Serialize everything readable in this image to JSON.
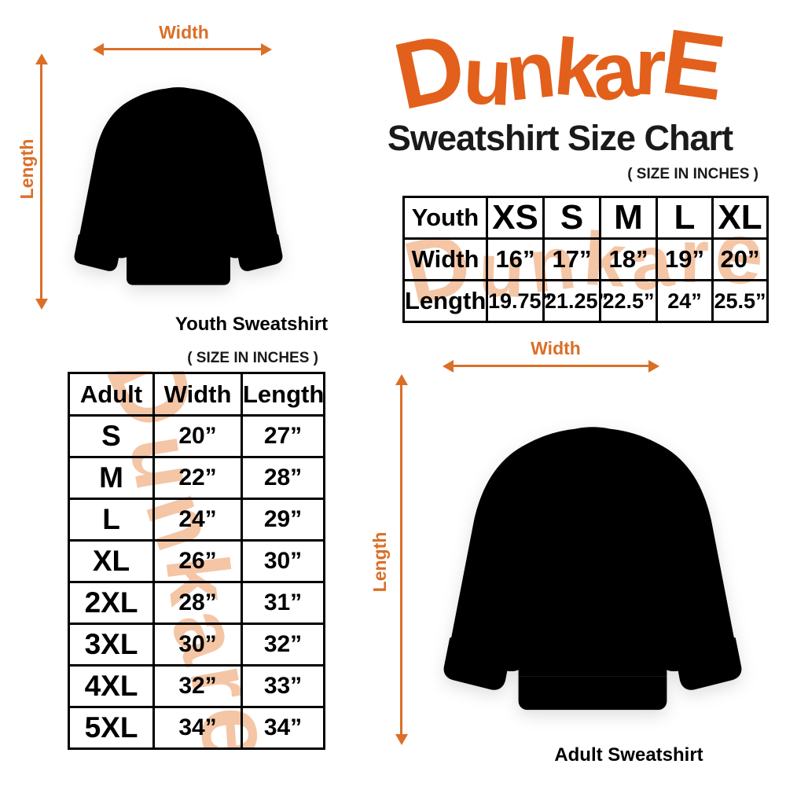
{
  "brand": {
    "logo_text": "DunkarE",
    "watermark_text": "Dunkare"
  },
  "header": {
    "title": "Sweatshirt Size Chart",
    "size_note": "( SIZE IN INCHES )"
  },
  "figures": {
    "youth": {
      "width_label": "Width",
      "length_label": "Length",
      "caption": "Youth Sweatshirt"
    },
    "adult": {
      "width_label": "Width",
      "length_label": "Length",
      "caption": "Adult Sweatshirt"
    }
  },
  "youth_table": {
    "header_label": "Youth",
    "sizes": [
      "XS",
      "S",
      "M",
      "L",
      "XL"
    ],
    "rows": [
      {
        "label": "Width",
        "values": [
          "16”",
          "17”",
          "18”",
          "19”",
          "20”"
        ]
      },
      {
        "label": "Length",
        "values": [
          "19.75”",
          "21.25”",
          "22.5”",
          "24”",
          "25.5”"
        ]
      }
    ]
  },
  "adult_table": {
    "size_note": "( SIZE IN INCHES )",
    "columns": [
      "Adult",
      "Width",
      "Length"
    ],
    "rows": [
      {
        "size": "S",
        "width": "20”",
        "length": "27”"
      },
      {
        "size": "M",
        "width": "22”",
        "length": "28”"
      },
      {
        "size": "L",
        "width": "24”",
        "length": "29”"
      },
      {
        "size": "XL",
        "width": "26”",
        "length": "30”"
      },
      {
        "size": "2XL",
        "width": "28”",
        "length": "31”"
      },
      {
        "size": "3XL",
        "width": "30”",
        "length": "32”"
      },
      {
        "size": "4XL",
        "width": "32”",
        "length": "33”"
      },
      {
        "size": "5XL",
        "width": "34”",
        "length": "34”"
      }
    ]
  },
  "colors": {
    "brand_orange": "#E2601B",
    "arrow_orange": "#DB6F27",
    "watermark_peach": "#F4C6A6",
    "text_black": "#111111"
  },
  "chart_data": [
    {
      "type": "table",
      "title": "Youth Sweatshirt Size Chart",
      "units": "inches",
      "columns": [
        "Youth",
        "XS",
        "S",
        "M",
        "L",
        "XL"
      ],
      "rows": [
        [
          "Width",
          16,
          17,
          18,
          19,
          20
        ],
        [
          "Length",
          19.75,
          21.25,
          22.5,
          24,
          25.5
        ]
      ]
    },
    {
      "type": "table",
      "title": "Adult Sweatshirt Size Chart",
      "units": "inches",
      "columns": [
        "Adult",
        "Width",
        "Length"
      ],
      "rows": [
        [
          "S",
          20,
          27
        ],
        [
          "M",
          22,
          28
        ],
        [
          "L",
          24,
          29
        ],
        [
          "XL",
          26,
          30
        ],
        [
          "2XL",
          28,
          31
        ],
        [
          "3XL",
          30,
          32
        ],
        [
          "4XL",
          32,
          33
        ],
        [
          "5XL",
          34,
          34
        ]
      ]
    }
  ]
}
